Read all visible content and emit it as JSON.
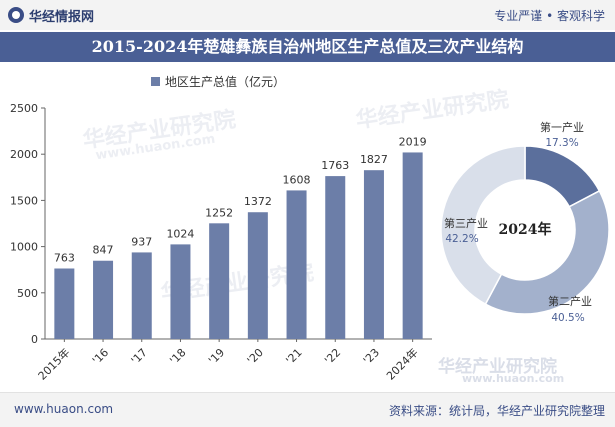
{
  "header": {
    "brand": "华经情报网",
    "slogan": "专业严谨 • 客观科学"
  },
  "title": "2015-2024年楚雄彝族自治州地区生产总值及三次产业结构",
  "colors": {
    "bar": "#6c7ea8",
    "primary": "#5b6f9c",
    "secondary": "#a3b1cc",
    "tertiary": "#d9dfea",
    "title_bg": "#4a5f95"
  },
  "chart_data": [
    {
      "type": "bar",
      "legend": "地区生产总值（亿元）",
      "categories": [
        "2015年",
        "'16",
        "'17",
        "'18",
        "'19",
        "'20",
        "'21",
        "'22",
        "'23",
        "2024年"
      ],
      "series": [
        {
          "name": "地区生产总值（亿元）",
          "values": [
            763,
            847,
            937,
            1024,
            1252,
            1372,
            1608,
            1763,
            1827,
            2019
          ]
        }
      ],
      "y_ticks": [
        "0",
        "500",
        "1000",
        "1500",
        "2000",
        "2500"
      ],
      "ylim": [
        0,
        2500
      ],
      "grid": false,
      "legend_position": "top-left"
    },
    {
      "type": "pie",
      "center_label": "2024年",
      "slices": [
        {
          "name": "第一产业",
          "value": 17.3,
          "label": "17.3%"
        },
        {
          "name": "第二产业",
          "value": 40.5,
          "label": "40.5%"
        },
        {
          "name": "第三产业",
          "value": 42.2,
          "label": "42.2%"
        }
      ]
    }
  ],
  "footer": {
    "website": "www.huaon.com",
    "source": "资料来源：统计局，华经产业研究院整理"
  },
  "watermarks": [
    "华经产业研究院",
    "www.huaon.com"
  ]
}
